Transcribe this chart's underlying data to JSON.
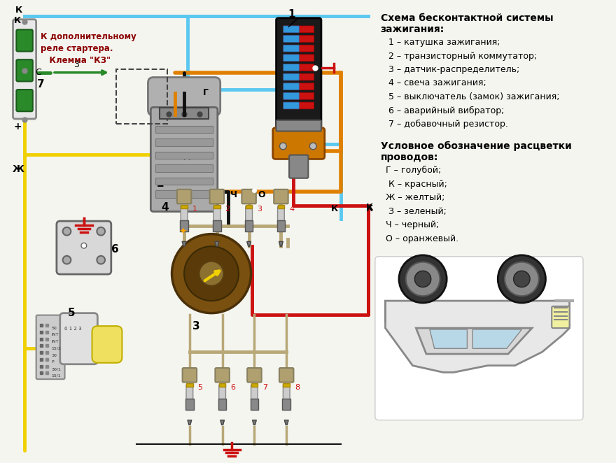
{
  "bg_color": "#f5f5f0",
  "color_blue": "#5bc8f0",
  "color_red": "#cc1111",
  "color_yellow": "#f0d000",
  "color_green": "#2a8a2a",
  "color_black": "#111111",
  "color_orange": "#e08000",
  "color_dark_red": "#8b0000",
  "color_beige": "#b8a878",
  "color_gray": "#aaaaaa",
  "color_dgray": "#666666",
  "color_lgray": "#dddddd",
  "color_brown": "#7a5010",
  "color_dark_green": "#1a5c1a",
  "legend_title1": "Схема бесконтактной системы",
  "legend_title2": "зажигания:",
  "legend_items": [
    "1 – катушка зажигания;",
    "2 – транзисторный коммутатор;",
    "3 – датчик-распределитель;",
    "4 – свеча зажигания;",
    "5 – выключатель (замок) зажигания;",
    "6 – аварийный вибратор;",
    "7 – добавочный резистор."
  ],
  "wire_title1": "Условное обозначение расцветки",
  "wire_title2": "проводов:",
  "wire_items": [
    "Г – голубой;",
    " К – красный;",
    "Ж – желтый;",
    " З – зеленый;",
    "Ч – черный;",
    "О – оранжевый."
  ],
  "label_starter": "К дополнительному\nреле стартера.\n   Клемма \"КЗ\""
}
